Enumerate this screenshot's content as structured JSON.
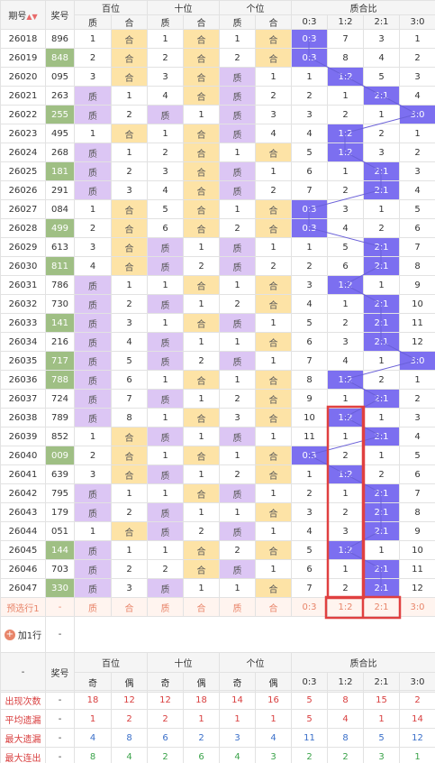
{
  "header": {
    "col_period": "期号",
    "sort_icon": "sort-updown",
    "col_number": "奖号",
    "groups": [
      "百位",
      "十位",
      "个位",
      "质合比"
    ],
    "sub_zh": [
      "质",
      "合"
    ],
    "sub_ratio": [
      "0:3",
      "1:2",
      "2:1",
      "3:0"
    ]
  },
  "rows": [
    {
      "p": "26018",
      "n": "896",
      "hl": false,
      "b": [
        "1",
        "合"
      ],
      "s": [
        "1",
        "合"
      ],
      "g": [
        "1",
        "合"
      ],
      "r": [
        "0:3",
        "7",
        "3",
        "1"
      ],
      "sel": 0
    },
    {
      "p": "26019",
      "n": "848",
      "hl": true,
      "b": [
        "2",
        "合"
      ],
      "s": [
        "2",
        "合"
      ],
      "g": [
        "2",
        "合"
      ],
      "r": [
        "0:3",
        "8",
        "4",
        "2"
      ],
      "sel": 0
    },
    {
      "p": "26020",
      "n": "095",
      "hl": false,
      "b": [
        "3",
        "合"
      ],
      "s": [
        "3",
        "合"
      ],
      "g": [
        "质",
        "1"
      ],
      "r": [
        "1",
        "1:2",
        "5",
        "3"
      ],
      "sel": 1
    },
    {
      "p": "26021",
      "n": "263",
      "hl": false,
      "b": [
        "质",
        "1"
      ],
      "s": [
        "4",
        "合"
      ],
      "g": [
        "质",
        "2"
      ],
      "r": [
        "2",
        "1",
        "2:1",
        "4"
      ],
      "sel": 2
    },
    {
      "p": "26022",
      "n": "255",
      "hl": true,
      "b": [
        "质",
        "2"
      ],
      "s": [
        "质",
        "1"
      ],
      "g": [
        "质",
        "3"
      ],
      "r": [
        "3",
        "2",
        "1",
        "3:0"
      ],
      "sel": 3
    },
    {
      "p": "26023",
      "n": "495",
      "hl": false,
      "b": [
        "1",
        "合"
      ],
      "s": [
        "1",
        "合"
      ],
      "g": [
        "质",
        "4"
      ],
      "r": [
        "4",
        "1:2",
        "2",
        "1"
      ],
      "sel": 1
    },
    {
      "p": "26024",
      "n": "268",
      "hl": false,
      "b": [
        "质",
        "1"
      ],
      "s": [
        "2",
        "合"
      ],
      "g": [
        "1",
        "合"
      ],
      "r": [
        "5",
        "1:2",
        "3",
        "2"
      ],
      "sel": 1
    },
    {
      "p": "26025",
      "n": "181",
      "hl": true,
      "b": [
        "质",
        "2"
      ],
      "s": [
        "3",
        "合"
      ],
      "g": [
        "质",
        "1"
      ],
      "r": [
        "6",
        "1",
        "2:1",
        "3"
      ],
      "sel": 2
    },
    {
      "p": "26026",
      "n": "291",
      "hl": false,
      "b": [
        "质",
        "3"
      ],
      "s": [
        "4",
        "合"
      ],
      "g": [
        "质",
        "2"
      ],
      "r": [
        "7",
        "2",
        "2:1",
        "4"
      ],
      "sel": 2
    },
    {
      "p": "26027",
      "n": "084",
      "hl": false,
      "b": [
        "1",
        "合"
      ],
      "s": [
        "5",
        "合"
      ],
      "g": [
        "1",
        "合"
      ],
      "r": [
        "0:3",
        "3",
        "1",
        "5"
      ],
      "sel": 0
    },
    {
      "p": "26028",
      "n": "499",
      "hl": true,
      "b": [
        "2",
        "合"
      ],
      "s": [
        "6",
        "合"
      ],
      "g": [
        "2",
        "合"
      ],
      "r": [
        "0:3",
        "4",
        "2",
        "6"
      ],
      "sel": 0
    },
    {
      "p": "26029",
      "n": "613",
      "hl": false,
      "b": [
        "3",
        "合"
      ],
      "s": [
        "质",
        "1"
      ],
      "g": [
        "质",
        "1"
      ],
      "r": [
        "1",
        "5",
        "2:1",
        "7"
      ],
      "sel": 2
    },
    {
      "p": "26030",
      "n": "811",
      "hl": true,
      "b": [
        "4",
        "合"
      ],
      "s": [
        "质",
        "2"
      ],
      "g": [
        "质",
        "2"
      ],
      "r": [
        "2",
        "6",
        "2:1",
        "8"
      ],
      "sel": 2
    },
    {
      "p": "26031",
      "n": "786",
      "hl": false,
      "b": [
        "质",
        "1"
      ],
      "s": [
        "1",
        "合"
      ],
      "g": [
        "1",
        "合"
      ],
      "r": [
        "3",
        "1:2",
        "1",
        "9"
      ],
      "sel": 1
    },
    {
      "p": "26032",
      "n": "730",
      "hl": false,
      "b": [
        "质",
        "2"
      ],
      "s": [
        "质",
        "1"
      ],
      "g": [
        "2",
        "合"
      ],
      "r": [
        "4",
        "1",
        "2:1",
        "10"
      ],
      "sel": 2
    },
    {
      "p": "26033",
      "n": "141",
      "hl": true,
      "b": [
        "质",
        "3"
      ],
      "s": [
        "1",
        "合"
      ],
      "g": [
        "质",
        "1"
      ],
      "r": [
        "5",
        "2",
        "2:1",
        "11"
      ],
      "sel": 2
    },
    {
      "p": "26034",
      "n": "216",
      "hl": false,
      "b": [
        "质",
        "4"
      ],
      "s": [
        "质",
        "1"
      ],
      "g": [
        "1",
        "合"
      ],
      "r": [
        "6",
        "3",
        "2:1",
        "12"
      ],
      "sel": 2
    },
    {
      "p": "26035",
      "n": "717",
      "hl": true,
      "b": [
        "质",
        "5"
      ],
      "s": [
        "质",
        "2"
      ],
      "g": [
        "质",
        "1"
      ],
      "r": [
        "7",
        "4",
        "1",
        "3:0"
      ],
      "sel": 3
    },
    {
      "p": "26036",
      "n": "788",
      "hl": true,
      "b": [
        "质",
        "6"
      ],
      "s": [
        "1",
        "合"
      ],
      "g": [
        "1",
        "合"
      ],
      "r": [
        "8",
        "1:2",
        "2",
        "1"
      ],
      "sel": 1
    },
    {
      "p": "26037",
      "n": "724",
      "hl": false,
      "b": [
        "质",
        "7"
      ],
      "s": [
        "质",
        "1"
      ],
      "g": [
        "2",
        "合"
      ],
      "r": [
        "9",
        "1",
        "2:1",
        "2"
      ],
      "sel": 2
    },
    {
      "p": "26038",
      "n": "789",
      "hl": false,
      "b": [
        "质",
        "8"
      ],
      "s": [
        "1",
        "合"
      ],
      "g": [
        "3",
        "合"
      ],
      "r": [
        "10",
        "1:2",
        "1",
        "3"
      ],
      "sel": 1
    },
    {
      "p": "26039",
      "n": "852",
      "hl": false,
      "b": [
        "1",
        "合"
      ],
      "s": [
        "质",
        "1"
      ],
      "g": [
        "质",
        "1"
      ],
      "r": [
        "11",
        "1",
        "2:1",
        "4"
      ],
      "sel": 2
    },
    {
      "p": "26040",
      "n": "009",
      "hl": true,
      "b": [
        "2",
        "合"
      ],
      "s": [
        "1",
        "合"
      ],
      "g": [
        "1",
        "合"
      ],
      "r": [
        "0:3",
        "2",
        "1",
        "5"
      ],
      "sel": 0
    },
    {
      "p": "26041",
      "n": "639",
      "hl": false,
      "b": [
        "3",
        "合"
      ],
      "s": [
        "质",
        "1"
      ],
      "g": [
        "2",
        "合"
      ],
      "r": [
        "1",
        "1:2",
        "2",
        "6"
      ],
      "sel": 1
    },
    {
      "p": "26042",
      "n": "795",
      "hl": false,
      "b": [
        "质",
        "1"
      ],
      "s": [
        "1",
        "合"
      ],
      "g": [
        "质",
        "1"
      ],
      "r": [
        "2",
        "1",
        "2:1",
        "7"
      ],
      "sel": 2
    },
    {
      "p": "26043",
      "n": "179",
      "hl": false,
      "b": [
        "质",
        "2"
      ],
      "s": [
        "质",
        "1"
      ],
      "g": [
        "1",
        "合"
      ],
      "r": [
        "3",
        "2",
        "2:1",
        "8"
      ],
      "sel": 2
    },
    {
      "p": "26044",
      "n": "051",
      "hl": false,
      "b": [
        "1",
        "合"
      ],
      "s": [
        "质",
        "2"
      ],
      "g": [
        "质",
        "1"
      ],
      "r": [
        "4",
        "3",
        "2:1",
        "9"
      ],
      "sel": 2
    },
    {
      "p": "26045",
      "n": "144",
      "hl": true,
      "b": [
        "质",
        "1"
      ],
      "s": [
        "1",
        "合"
      ],
      "g": [
        "2",
        "合"
      ],
      "r": [
        "5",
        "1:2",
        "1",
        "10"
      ],
      "sel": 1
    },
    {
      "p": "26046",
      "n": "703",
      "hl": false,
      "b": [
        "质",
        "2"
      ],
      "s": [
        "2",
        "合"
      ],
      "g": [
        "质",
        "1"
      ],
      "r": [
        "6",
        "1",
        "2:1",
        "11"
      ],
      "sel": 2
    },
    {
      "p": "26047",
      "n": "330",
      "hl": true,
      "b": [
        "质",
        "3"
      ],
      "s": [
        "质",
        "1"
      ],
      "g": [
        "1",
        "合"
      ],
      "r": [
        "7",
        "2",
        "2:1",
        "12"
      ],
      "sel": 2
    }
  ],
  "preselect": {
    "label": "预选行1",
    "n": "-",
    "cells": [
      "质",
      "合",
      "质",
      "合",
      "质",
      "合",
      "0:3",
      "1:2",
      "2:1",
      "3:0"
    ]
  },
  "add_row": {
    "label": "加1行",
    "icon": "plus-circle-icon",
    "n": "-"
  },
  "footer": {
    "col_period": "-",
    "col_number": "奖号",
    "groups": [
      "百位",
      "十位",
      "个位",
      "质合比"
    ],
    "sub_oe": [
      "奇",
      "偶"
    ],
    "sub_ratio": [
      "0:3",
      "1:2",
      "2:1",
      "3:0"
    ]
  },
  "stats": [
    {
      "label": "出现次数",
      "n": "-",
      "v": [
        "18",
        "12",
        "12",
        "18",
        "14",
        "16",
        "5",
        "8",
        "15",
        "2"
      ]
    },
    {
      "label": "平均遗漏",
      "n": "-",
      "v": [
        "1",
        "2",
        "2",
        "1",
        "1",
        "1",
        "5",
        "4",
        "1",
        "14"
      ]
    },
    {
      "label": "最大遗漏",
      "n": "-",
      "v": [
        "4",
        "8",
        "6",
        "2",
        "3",
        "4",
        "11",
        "8",
        "5",
        "12"
      ]
    },
    {
      "label": "最大连出",
      "n": "-",
      "v": [
        "8",
        "4",
        "2",
        "6",
        "4",
        "3",
        "2",
        "2",
        "3",
        "1"
      ]
    }
  ],
  "colors": {
    "prime": "#dcc6f4",
    "composite": "#fde3a6",
    "ratio_hit": "#7c6ff0",
    "number_hl": "#9fbf84",
    "highlight_box": "#e04040"
  }
}
